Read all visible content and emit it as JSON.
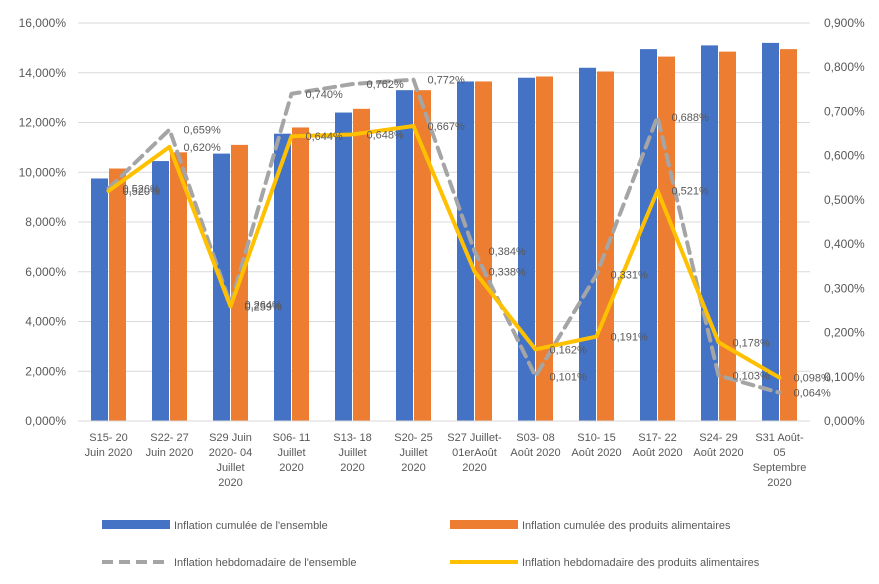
{
  "chart_data": {
    "type": "bar+line",
    "categories": [
      "S15- 20 Juin 2020",
      "S22- 27 Juin 2020",
      "S29 Juin 2020- 04 Juillet 2020",
      "S06- 11 Juillet 2020",
      "S13- 18 Juillet 2020",
      "S20- 25 Juillet 2020",
      "S27 Juillet- 01er Août 2020",
      "S03- 08 Août 2020",
      "S10- 15 Août 2020",
      "S17- 22 Août 2020",
      "S24- 29 Août 2020",
      "S31 Août- 05 Septembre 2020"
    ],
    "category_lines": [
      [
        "S15- 20",
        "Juin 2020"
      ],
      [
        "S22- 27",
        "Juin 2020"
      ],
      [
        "S29 Juin",
        "2020- 04",
        "Juillet",
        "2020"
      ],
      [
        "S06- 11",
        "Juillet",
        "2020"
      ],
      [
        "S13- 18",
        "Juillet",
        "2020"
      ],
      [
        "S20- 25",
        "Juillet",
        "2020"
      ],
      [
        "S27 Juillet-",
        "01erAoût",
        "2020"
      ],
      [
        "S03- 08",
        "Août 2020"
      ],
      [
        "S10- 15",
        "Août 2020"
      ],
      [
        "S17- 22",
        "Août 2020"
      ],
      [
        "S24- 29",
        "Août 2020"
      ],
      [
        "S31 Août-",
        "05",
        "Septembre",
        "2020"
      ]
    ],
    "left_axis": {
      "ylim": [
        0,
        16
      ],
      "ticks": [
        "0,000%",
        "2,000%",
        "4,000%",
        "6,000%",
        "8,000%",
        "10,000%",
        "12,000%",
        "14,000%",
        "16,000%"
      ]
    },
    "right_axis": {
      "ylim": [
        0,
        0.9
      ],
      "ticks": [
        "0,000%",
        "0,100%",
        "0,200%",
        "0,300%",
        "0,400%",
        "0,500%",
        "0,600%",
        "0,700%",
        "0,800%",
        "0,900%"
      ]
    },
    "grid": true,
    "legend_position": "bottom",
    "series": [
      {
        "name": "Inflation cumulée de l'ensemble",
        "kind": "bar",
        "axis": "left",
        "color": "#4472C4",
        "values": [
          9.75,
          10.45,
          10.75,
          11.55,
          12.4,
          13.3,
          13.65,
          13.8,
          14.2,
          14.95,
          15.1,
          15.2
        ]
      },
      {
        "name": "Inflation cumulée des produits alimentaires",
        "kind": "bar",
        "axis": "left",
        "color": "#ED7D31",
        "values": [
          10.15,
          10.8,
          11.1,
          11.8,
          12.55,
          13.3,
          13.65,
          13.85,
          14.05,
          14.65,
          14.85,
          14.95
        ]
      },
      {
        "name": "Inflation hebdomadaire de l'ensemble",
        "kind": "line",
        "style": "dashed",
        "axis": "right",
        "color": "#A5A5A5",
        "values": [
          0.526,
          0.659,
          0.264,
          0.74,
          0.762,
          0.772,
          0.384,
          0.101,
          0.331,
          0.688,
          0.103,
          0.064
        ],
        "labels": [
          "0,526%",
          "0,659%",
          "0,264%",
          "0,740%",
          "0,762%",
          "0,772%",
          "0,384%",
          "0,101%",
          "0,331%",
          "0,688%",
          "0,103%",
          "0,064%"
        ]
      },
      {
        "name": "Inflation hebdomadaire des produits alimentaires",
        "kind": "line",
        "style": "solid",
        "axis": "right",
        "color": "#FFC000",
        "values": [
          0.52,
          0.62,
          0.259,
          0.644,
          0.648,
          0.667,
          0.338,
          0.162,
          0.191,
          0.521,
          0.178,
          0.098
        ],
        "labels": [
          "0,520%",
          "0,620%",
          "0,259%",
          "0,644%",
          "0,648%",
          "0,667%",
          "0,338%",
          "0,162%",
          "0,191%",
          "0,521%",
          "0,178%",
          "0,098%"
        ]
      }
    ]
  }
}
